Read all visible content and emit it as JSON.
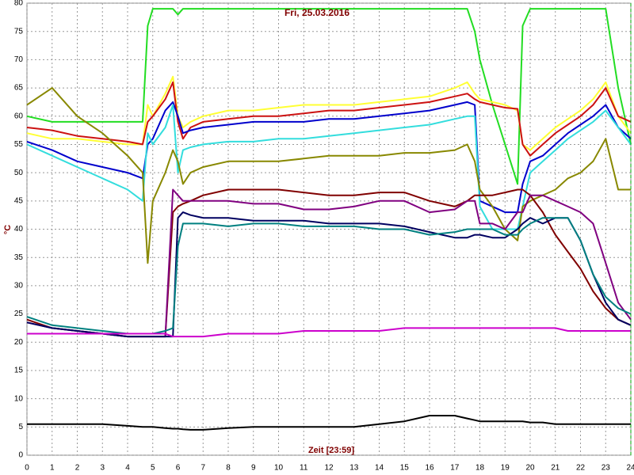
{
  "chart_data": {
    "type": "line",
    "title": "Fri, 25.03.2016",
    "x_label": "Zeit [23:59]",
    "y_label": "°C",
    "x": [
      0,
      1,
      2,
      3,
      4,
      4.6,
      4.8,
      5,
      5.5,
      5.8,
      6,
      6.2,
      6.5,
      7,
      8,
      9,
      10,
      11,
      12,
      13,
      14,
      15,
      16,
      17,
      17.5,
      17.8,
      18,
      18.5,
      19,
      19.5,
      19.7,
      20,
      20.5,
      21,
      21.5,
      22,
      22.5,
      23,
      23.5,
      24
    ],
    "xlim": [
      0,
      24
    ],
    "xticks": [
      0,
      1,
      2,
      3,
      4,
      5,
      6,
      7,
      8,
      9,
      10,
      11,
      12,
      13,
      14,
      15,
      16,
      17,
      18,
      19,
      20,
      21,
      22,
      23,
      24
    ],
    "ylim": [
      0,
      80
    ],
    "yticks": [
      0,
      5,
      10,
      15,
      20,
      25,
      30,
      35,
      40,
      45,
      50,
      55,
      60,
      65,
      70,
      75,
      80
    ],
    "grid": true,
    "series": [
      {
        "color": "#22dd22",
        "values": [
          60,
          59,
          59,
          59,
          59,
          59,
          76,
          79,
          79,
          79,
          78,
          79,
          79,
          79,
          79,
          79,
          79,
          79,
          79,
          79,
          79,
          79,
          79,
          79,
          79,
          75,
          70,
          62,
          55,
          48,
          76,
          79,
          79,
          79,
          79,
          79,
          79,
          79,
          65,
          55
        ]
      },
      {
        "color": "#ffff33",
        "values": [
          57,
          56,
          56,
          55.5,
          55,
          55,
          62,
          60,
          64,
          67,
          60,
          58,
          59,
          60,
          61,
          61,
          61.5,
          62,
          62,
          62,
          62.5,
          63,
          63.5,
          65,
          66,
          64,
          63,
          62.5,
          62,
          61,
          55,
          54,
          56,
          58,
          59.5,
          61,
          63,
          66,
          60,
          57
        ]
      },
      {
        "color": "#cc1111",
        "values": [
          58,
          57.5,
          56.5,
          56,
          55.5,
          55,
          59,
          60,
          63,
          66,
          59,
          56,
          58,
          59,
          59.5,
          60,
          60,
          60.5,
          61,
          61,
          61.5,
          62,
          62.5,
          63.5,
          64,
          63,
          62.5,
          62,
          61.5,
          61.3,
          55,
          53,
          55,
          57,
          58.5,
          60,
          62,
          65,
          60,
          59
        ]
      },
      {
        "color": "#0000cc",
        "values": [
          55.5,
          54,
          52,
          51,
          50,
          49,
          55,
          56,
          61,
          62.5,
          60,
          57,
          57.5,
          58,
          58.5,
          59,
          59,
          59,
          59.5,
          59.5,
          60,
          60.5,
          61,
          62,
          62.5,
          62,
          45,
          44,
          43,
          43,
          48,
          52,
          53,
          55,
          57,
          58.5,
          60,
          62,
          58,
          56
        ]
      },
      {
        "color": "#33dddd",
        "values": [
          55,
          53,
          51,
          49,
          47,
          45,
          57,
          55,
          58,
          62,
          50,
          54,
          54.5,
          55,
          55.5,
          55.5,
          56,
          56,
          56.5,
          57,
          57.5,
          58,
          58.5,
          59.5,
          60,
          60,
          44,
          40,
          40,
          40,
          44,
          50,
          52,
          54,
          56,
          57.5,
          59,
          61,
          58,
          55
        ]
      },
      {
        "color": "#888800",
        "values": [
          62,
          65,
          60,
          57,
          53,
          50,
          34,
          45,
          50,
          54,
          52,
          48,
          50,
          51,
          52,
          52,
          52,
          52.5,
          53,
          53,
          53,
          53.5,
          53.5,
          54,
          55,
          52,
          47,
          44,
          40,
          38,
          44,
          45,
          46,
          47,
          49,
          50,
          52,
          56,
          47,
          47
        ]
      },
      {
        "color": "#800000",
        "values": [
          24,
          22.5,
          22,
          21.5,
          21,
          21,
          21,
          21,
          21,
          43,
          44,
          44.5,
          45,
          46,
          47,
          47,
          47,
          46.5,
          46,
          46,
          46.5,
          46.5,
          45,
          44,
          45,
          46,
          46,
          46,
          46.5,
          47,
          47,
          46,
          43,
          39,
          36,
          33,
          29,
          26,
          24,
          23
        ]
      },
      {
        "color": "#800080",
        "values": [
          23.5,
          22.5,
          22,
          21.5,
          21,
          21,
          21,
          21,
          21,
          47,
          46,
          45,
          45,
          45,
          45,
          44.5,
          44.5,
          43.5,
          43.5,
          44,
          45,
          45,
          43,
          43.5,
          45,
          45,
          41,
          41,
          40,
          43,
          43,
          46,
          46,
          45,
          44,
          43,
          41,
          34,
          27,
          24
        ]
      },
      {
        "color": "#000060",
        "values": [
          23.5,
          22.5,
          22,
          21.5,
          21,
          21,
          21,
          21,
          21,
          21,
          42,
          43,
          42.5,
          42,
          42,
          41.5,
          41.5,
          41.5,
          41,
          41,
          41,
          40.5,
          39.5,
          38.5,
          38.5,
          39,
          39,
          38.5,
          38.5,
          40,
          41,
          42,
          41,
          42,
          42,
          38,
          32,
          27,
          24,
          23
        ]
      },
      {
        "color": "#008080",
        "values": [
          24.5,
          23,
          22.5,
          22,
          21.5,
          21.5,
          21.5,
          21.5,
          22,
          22.5,
          37,
          41,
          41,
          41,
          40.5,
          41,
          41,
          40.5,
          40.5,
          40.5,
          40,
          40,
          39,
          39.5,
          40,
          40,
          40,
          40,
          39,
          39,
          40,
          41,
          42,
          42,
          42,
          38,
          32,
          28,
          26,
          25
        ]
      },
      {
        "color": "#cc00cc",
        "values": [
          21.5,
          21.5,
          21.5,
          21.5,
          21.5,
          21.5,
          21.5,
          21.5,
          21.5,
          21,
          21,
          21,
          21,
          21,
          21.5,
          21.5,
          21.5,
          22,
          22,
          22,
          22,
          22.5,
          22.5,
          22.5,
          22.5,
          22.5,
          22.5,
          22.5,
          22.5,
          22.5,
          22.5,
          22.5,
          22.5,
          22.5,
          22,
          22,
          22,
          22,
          22,
          22
        ]
      },
      {
        "color": "#000000",
        "values": [
          5.5,
          5.5,
          5.5,
          5.5,
          5.2,
          5,
          5,
          5,
          4.8,
          4.7,
          4.7,
          4.6,
          4.5,
          4.5,
          4.8,
          5,
          5,
          5,
          5,
          5,
          5.5,
          6,
          7,
          7,
          6.5,
          6.2,
          6,
          6,
          6,
          6,
          6,
          5.8,
          5.8,
          5.5,
          5.5,
          5.5,
          5.5,
          5.5,
          5.5,
          5.5
        ]
      }
    ]
  }
}
